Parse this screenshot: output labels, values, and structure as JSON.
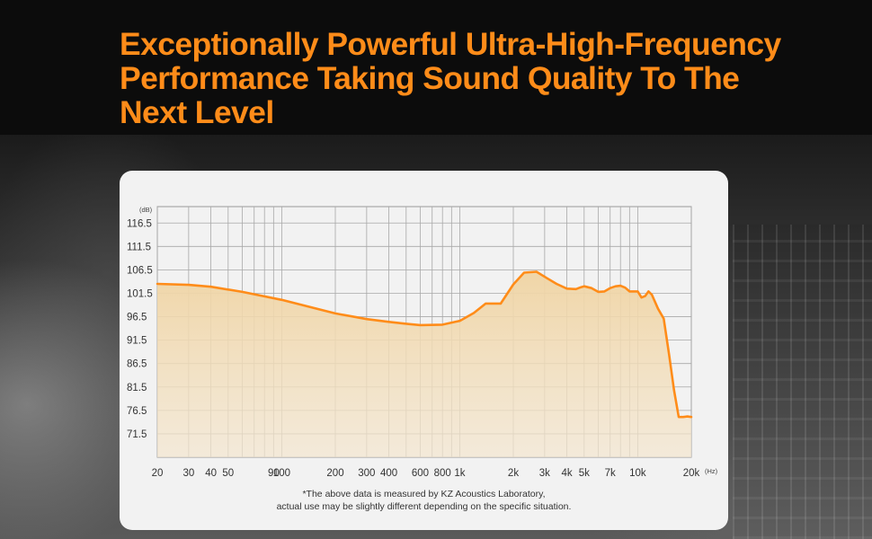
{
  "headline": {
    "line1": "Exceptionally Powerful Ultra-High-Frequency",
    "line2": "Performance Taking Sound Quality To The",
    "line3": "Next Level"
  },
  "footnote": {
    "line1": "*The above data is measured by KZ Acoustics Laboratory,",
    "line2": "actual use may be slightly different depending on the specific situation."
  },
  "colors": {
    "accent": "#ff8c19",
    "fill": "#f3ddb8",
    "card": "#f2f2f2"
  },
  "chart_data": {
    "type": "line",
    "title": "",
    "xlabel": "Hz",
    "ylabel": "dB",
    "x_scale": "log",
    "xlim": [
      20,
      20000
    ],
    "ylim": [
      66.5,
      120
    ],
    "y_ticks": [
      116.5,
      111.5,
      106.5,
      101.5,
      96.5,
      91.5,
      86.5,
      81.5,
      76.5,
      71.5
    ],
    "y_tick_labels": [
      "116.5",
      "111.5",
      "106.5",
      "101.5",
      "96.5",
      "91.5",
      "86.5",
      "81.5",
      "76.5",
      "71.5"
    ],
    "x_tick_labels": [
      {
        "value": 20,
        "label": "20"
      },
      {
        "value": 30,
        "label": "30"
      },
      {
        "value": 40,
        "label": "40"
      },
      {
        "value": 50,
        "label": "50"
      },
      {
        "value": 90,
        "label": "90"
      },
      {
        "value": 100,
        "label": "100"
      },
      {
        "value": 200,
        "label": "200"
      },
      {
        "value": 300,
        "label": "300"
      },
      {
        "value": 400,
        "label": "400"
      },
      {
        "value": 600,
        "label": "600"
      },
      {
        "value": 800,
        "label": "800"
      },
      {
        "value": 1000,
        "label": "1k"
      },
      {
        "value": 2000,
        "label": "2k"
      },
      {
        "value": 3000,
        "label": "3k"
      },
      {
        "value": 4000,
        "label": "4k"
      },
      {
        "value": 5000,
        "label": "5k"
      },
      {
        "value": 7000,
        "label": "7k"
      },
      {
        "value": 10000,
        "label": "10k"
      },
      {
        "value": 20000,
        "label": "20k"
      }
    ],
    "grid": true,
    "series": [
      {
        "x": [
          20,
          30,
          40,
          60,
          100,
          150,
          200,
          300,
          400,
          500,
          600,
          800,
          1000,
          1100,
          1200,
          1400,
          1700,
          2000,
          2300,
          2700,
          3100,
          3500,
          4000,
          4500,
          4800,
          5000,
          5500,
          6000,
          6500,
          7000,
          7500,
          8000,
          8500,
          9000,
          9500,
          10000,
          10500,
          11000,
          11500,
          12000,
          13000,
          14000,
          15000,
          16000,
          17000,
          18000,
          19000,
          20000
        ],
        "y": [
          103.5,
          103.3,
          102.9,
          101.8,
          100.1,
          98.4,
          97.2,
          96.0,
          95.4,
          95.0,
          94.7,
          94.8,
          95.6,
          96.5,
          97.3,
          99.3,
          99.3,
          103.4,
          105.9,
          106.1,
          104.7,
          103.5,
          102.5,
          102.4,
          102.8,
          103.0,
          102.6,
          101.8,
          101.9,
          102.6,
          103.0,
          103.1,
          102.7,
          101.9,
          101.9,
          101.9,
          100.6,
          100.9,
          101.9,
          101.2,
          98.2,
          96.1,
          88.4,
          80.8,
          75.1,
          75.1,
          75.2,
          75.1
        ]
      }
    ]
  }
}
